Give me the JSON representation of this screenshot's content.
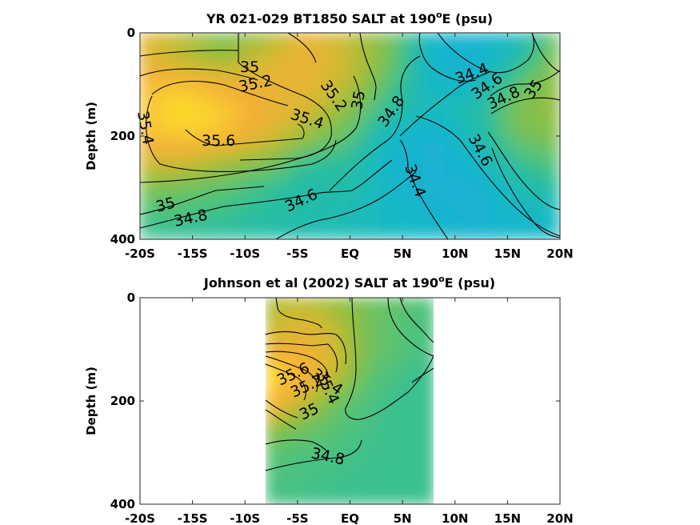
{
  "chart_data": [
    {
      "type": "heatmap",
      "title": "YR 021-029 BT1850 SALT at 190",
      "title_superscript": "o",
      "title_suffix": "E (psu)",
      "ylabel": "Depth (m)",
      "xticks": [
        "-20S",
        "-15S",
        "-10S",
        "-5S",
        "EQ",
        "5N",
        "10N",
        "15N",
        "20N"
      ],
      "yticks": [
        "0",
        "200",
        "400"
      ],
      "xlim": [
        -20,
        20
      ],
      "ylim": [
        0,
        400
      ],
      "y_reversed": true,
      "colormap": "parula",
      "x": [
        -20,
        -16,
        -12,
        -8,
        -4,
        0,
        4,
        8,
        12,
        16,
        20
      ],
      "depth": [
        0,
        50,
        100,
        150,
        200,
        250,
        300,
        350,
        400
      ],
      "salinity": [
        [
          35.3,
          35.1,
          34.9,
          35.0,
          35.3,
          35.1,
          34.9,
          34.5,
          34.4,
          34.55,
          34.9
        ],
        [
          35.3,
          35.1,
          35.0,
          35.2,
          35.35,
          35.15,
          34.9,
          34.45,
          34.4,
          34.65,
          35.0
        ],
        [
          35.45,
          35.5,
          35.35,
          35.3,
          35.3,
          35.1,
          34.8,
          34.5,
          34.5,
          34.85,
          35.0
        ],
        [
          35.5,
          35.65,
          35.55,
          35.35,
          35.2,
          34.95,
          34.7,
          34.55,
          34.65,
          34.95,
          35.0
        ],
        [
          35.45,
          35.55,
          35.5,
          35.25,
          35.0,
          34.85,
          34.5,
          34.4,
          34.6,
          34.9,
          34.95
        ],
        [
          35.2,
          35.2,
          35.05,
          34.95,
          34.75,
          34.7,
          34.45,
          34.4,
          34.5,
          34.75,
          34.85
        ],
        [
          34.95,
          34.9,
          34.85,
          34.75,
          34.65,
          34.65,
          34.5,
          34.4,
          34.4,
          34.6,
          34.7
        ],
        [
          34.8,
          34.8,
          34.75,
          34.7,
          34.65,
          34.6,
          34.5,
          34.45,
          34.4,
          34.5,
          34.55
        ],
        [
          34.75,
          34.7,
          34.7,
          34.65,
          34.6,
          34.6,
          34.55,
          34.5,
          34.45,
          34.45,
          34.5
        ]
      ],
      "contour_labels": [
        "35",
        "35.2",
        "35.2",
        "35",
        "35.4",
        "35.4",
        "35.6",
        "34.8",
        "34.4",
        "34.6",
        "34.8",
        "35",
        "34.6",
        "34.4",
        "35",
        "34.8",
        "34.6"
      ]
    },
    {
      "type": "heatmap",
      "title": "Johnson et al (2002) SALT at 190",
      "title_superscript": "o",
      "title_suffix": "E (psu)",
      "ylabel": "Depth (m)",
      "xticks": [
        "-20S",
        "-15S",
        "-10S",
        "-5S",
        "EQ",
        "5N",
        "10N",
        "15N",
        "20N"
      ],
      "yticks": [
        "0",
        "200",
        "400"
      ],
      "xlim": [
        -20,
        20
      ],
      "ylim": [
        0,
        400
      ],
      "y_reversed": true,
      "data_xrange": [
        -8,
        8
      ],
      "colormap": "parula",
      "x": [
        -8,
        -6,
        -4,
        -2,
        0,
        2,
        4,
        6,
        8
      ],
      "depth": [
        0,
        50,
        100,
        150,
        200,
        250,
        300,
        350,
        400
      ],
      "salinity": [
        [
          35.0,
          35.1,
          35.1,
          35.0,
          34.95,
          34.9,
          34.85,
          34.85,
          34.8
        ],
        [
          35.1,
          35.2,
          35.2,
          35.15,
          35.0,
          34.9,
          34.85,
          34.8,
          34.8
        ],
        [
          35.25,
          35.35,
          35.35,
          35.25,
          35.05,
          34.9,
          34.85,
          34.8,
          34.8
        ],
        [
          35.7,
          35.55,
          35.4,
          35.2,
          35.0,
          34.85,
          34.8,
          34.75,
          34.75
        ],
        [
          35.5,
          35.3,
          35.1,
          34.95,
          34.85,
          34.8,
          34.75,
          34.75,
          34.75
        ],
        [
          35.05,
          34.95,
          34.9,
          34.85,
          34.8,
          34.78,
          34.75,
          34.75,
          34.75
        ],
        [
          34.85,
          34.82,
          34.8,
          34.8,
          34.78,
          34.76,
          34.75,
          34.75,
          34.75
        ],
        [
          34.8,
          34.8,
          34.78,
          34.77,
          34.76,
          34.75,
          34.75,
          34.75,
          34.75
        ],
        [
          34.78,
          34.78,
          34.77,
          34.76,
          34.75,
          34.75,
          34.75,
          34.75,
          34.75
        ]
      ],
      "contour_labels": [
        "35.4",
        "35.6",
        "35.2",
        "35",
        "35.4",
        "34.8"
      ]
    }
  ],
  "colors": {
    "low": "#1fb4d4",
    "mid": "#5ec962",
    "high": "#fde725",
    "warm": "#f5b73a"
  }
}
